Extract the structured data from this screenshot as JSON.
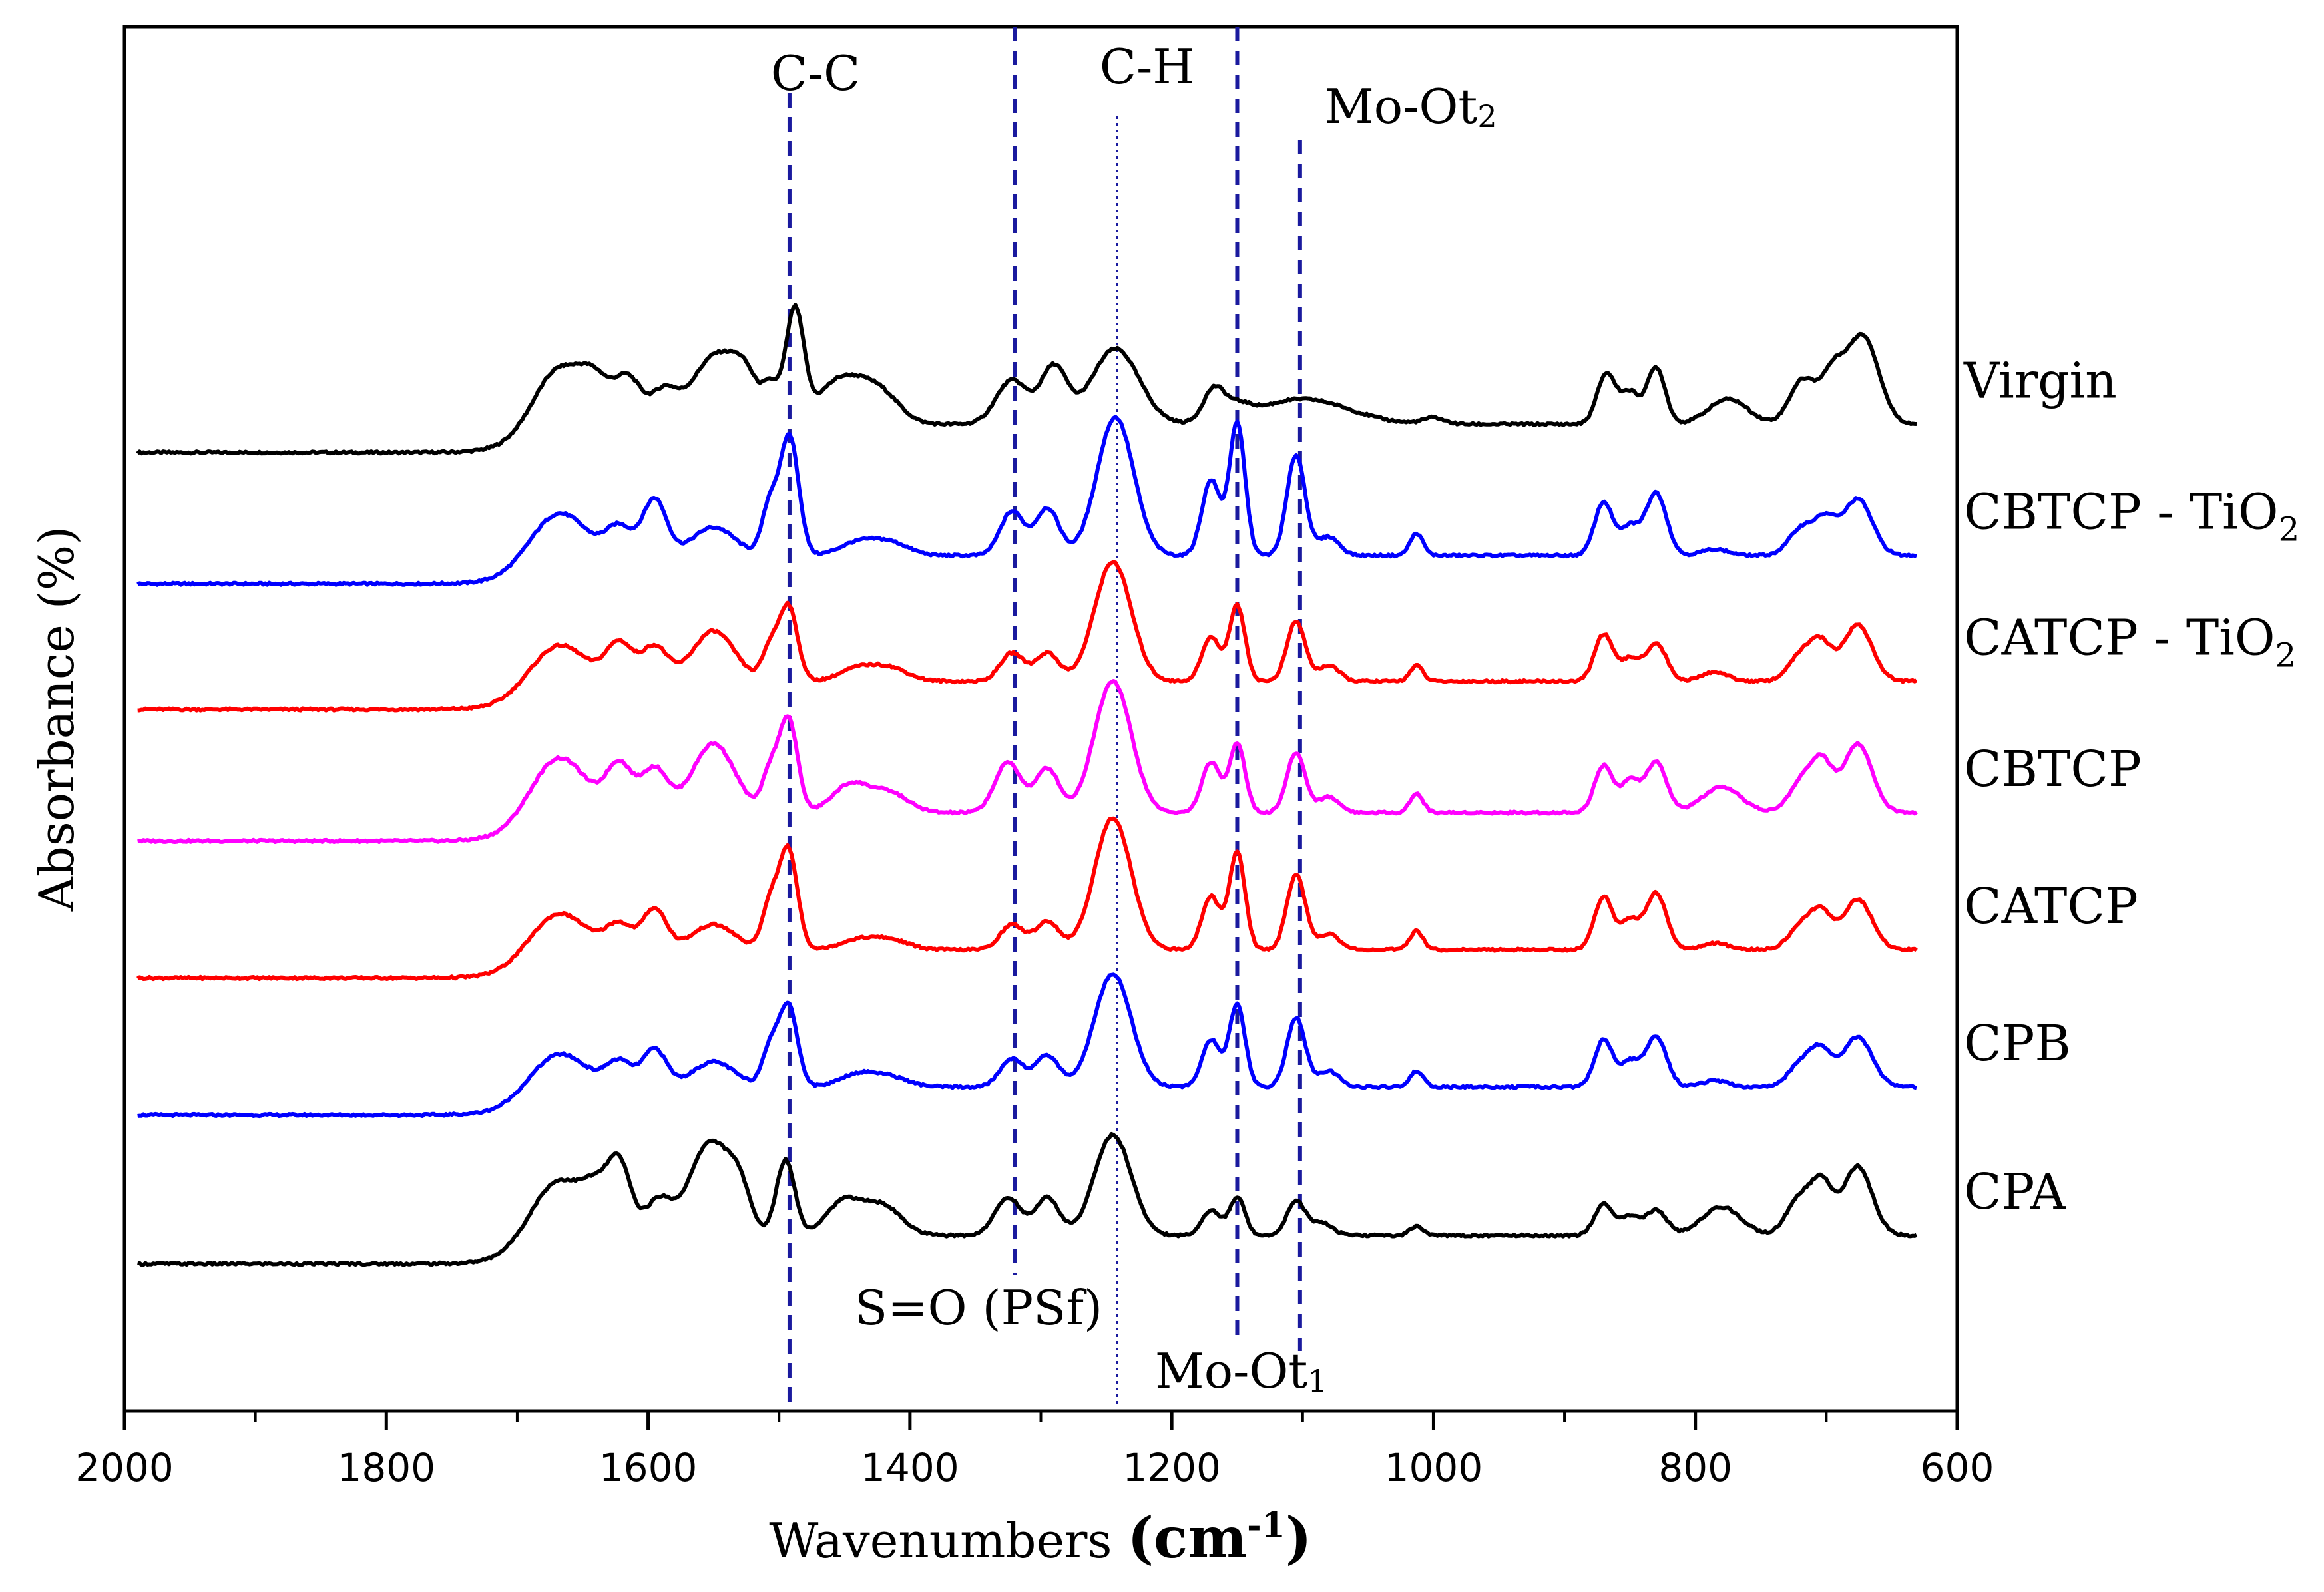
{
  "chart_data": {
    "type": "line",
    "xlabel": "Wavenumbers",
    "xlabel_unit": "(cm",
    "xlabel_unit_sup": "-1",
    "xlabel_close": ")",
    "ylabel": "Absorbance (%)",
    "xlim": [
      2000,
      600
    ],
    "x_reversed": true,
    "grid": false,
    "x_ticks": [
      2000,
      1800,
      1600,
      1400,
      1200,
      1000,
      800,
      600
    ],
    "x_tick_labels": [
      "2000",
      "1800",
      "1600",
      "1400",
      "1200",
      "1000",
      "800",
      "600"
    ],
    "x_range_data": [
      1990,
      630
    ],
    "series": [
      {
        "name": "Virgin",
        "label_main": "Virgin",
        "label_sub": "",
        "color": "#000000",
        "offset": 7.1,
        "peaks": [
          [
            1668,
            0.9,
            18
          ],
          [
            1640,
            0.6,
            12
          ],
          [
            1615,
            0.7,
            10
          ],
          [
            1588,
            0.5,
            10
          ],
          [
            1548,
            1.1,
            18
          ],
          [
            1525,
            0.5,
            10
          ],
          [
            1506,
            0.5,
            6
          ],
          [
            1488,
            1.8,
            7
          ],
          [
            1460,
            0.5,
            14
          ],
          [
            1440,
            0.45,
            14
          ],
          [
            1420,
            0.4,
            14
          ],
          [
            1322,
            0.7,
            12
          ],
          [
            1290,
            0.9,
            10
          ],
          [
            1243,
            1.2,
            18
          ],
          [
            1168,
            0.5,
            8
          ],
          [
            1150,
            0.2,
            10
          ],
          [
            1100,
            0.4,
            35
          ],
          [
            1000,
            0.1,
            8
          ],
          [
            868,
            0.8,
            7
          ],
          [
            850,
            0.5,
            7
          ],
          [
            830,
            0.9,
            7
          ],
          [
            775,
            0.4,
            15
          ],
          [
            718,
            0.7,
            10
          ],
          [
            695,
            0.75,
            9
          ],
          [
            672,
            1.4,
            12
          ]
        ]
      },
      {
        "name": "CBTCP - TiO2",
        "label_main": "CBTCP - TiO",
        "label_sub": "2",
        "color": "#0000ff",
        "offset": 5.95,
        "peaks": [
          [
            1668,
            0.7,
            20
          ],
          [
            1622,
            0.45,
            10
          ],
          [
            1595,
            0.9,
            9
          ],
          [
            1550,
            0.45,
            16
          ],
          [
            1507,
            0.8,
            6
          ],
          [
            1492,
            1.9,
            7
          ],
          [
            1440,
            0.2,
            14
          ],
          [
            1415,
            0.2,
            14
          ],
          [
            1322,
            0.7,
            9
          ],
          [
            1295,
            0.75,
            9
          ],
          [
            1243,
            2.2,
            14
          ],
          [
            1170,
            1.2,
            7
          ],
          [
            1150,
            2.1,
            6
          ],
          [
            1105,
            1.6,
            7
          ],
          [
            1080,
            0.3,
            8
          ],
          [
            1013,
            0.35,
            5
          ],
          [
            870,
            0.85,
            7
          ],
          [
            850,
            0.45,
            7
          ],
          [
            830,
            1.0,
            8
          ],
          [
            785,
            0.1,
            10
          ],
          [
            718,
            0.45,
            10
          ],
          [
            700,
            0.5,
            8
          ],
          [
            676,
            0.9,
            11
          ]
        ]
      },
      {
        "name": "CATCP - TiO2",
        "label_main": "CATCP - TiO",
        "label_sub": "2",
        "color": "#ff0000",
        "offset": 4.85,
        "peaks": [
          [
            1668,
            0.6,
            20
          ],
          [
            1622,
            0.6,
            10
          ],
          [
            1595,
            0.55,
            10
          ],
          [
            1550,
            0.8,
            16
          ],
          [
            1507,
            0.5,
            6
          ],
          [
            1493,
            1.2,
            7
          ],
          [
            1440,
            0.2,
            14
          ],
          [
            1415,
            0.2,
            14
          ],
          [
            1322,
            0.45,
            9
          ],
          [
            1295,
            0.45,
            9
          ],
          [
            1245,
            1.9,
            14
          ],
          [
            1170,
            0.7,
            7
          ],
          [
            1150,
            1.2,
            6
          ],
          [
            1105,
            0.95,
            7
          ],
          [
            1080,
            0.25,
            8
          ],
          [
            1013,
            0.25,
            5
          ],
          [
            870,
            0.75,
            7
          ],
          [
            850,
            0.35,
            7
          ],
          [
            830,
            0.6,
            8
          ],
          [
            785,
            0.15,
            10
          ],
          [
            718,
            0.45,
            10
          ],
          [
            703,
            0.5,
            8
          ],
          [
            676,
            0.9,
            11
          ]
        ]
      },
      {
        "name": "CBTCP",
        "label_main": "CBTCP",
        "label_sub": "",
        "color": "#ff00ff",
        "offset": 3.7,
        "peaks": [
          [
            1668,
            0.9,
            20
          ],
          [
            1622,
            0.75,
            10
          ],
          [
            1595,
            0.7,
            10
          ],
          [
            1550,
            1.1,
            16
          ],
          [
            1507,
            0.6,
            6
          ],
          [
            1493,
            1.5,
            7
          ],
          [
            1445,
            0.45,
            14
          ],
          [
            1415,
            0.3,
            14
          ],
          [
            1325,
            0.8,
            10
          ],
          [
            1295,
            0.7,
            9
          ],
          [
            1245,
            2.1,
            14
          ],
          [
            1170,
            0.8,
            7
          ],
          [
            1150,
            1.1,
            6
          ],
          [
            1105,
            0.95,
            7
          ],
          [
            1080,
            0.25,
            8
          ],
          [
            1013,
            0.3,
            5
          ],
          [
            870,
            0.75,
            7
          ],
          [
            850,
            0.5,
            7
          ],
          [
            830,
            0.8,
            8
          ],
          [
            780,
            0.4,
            15
          ],
          [
            718,
            0.5,
            10
          ],
          [
            703,
            0.7,
            8
          ],
          [
            676,
            1.1,
            11
          ]
        ]
      },
      {
        "name": "CATCP",
        "label_main": "CATCP",
        "label_sub": "",
        "color": "#ff0000",
        "offset": 2.5,
        "peaks": [
          [
            1668,
            0.6,
            20
          ],
          [
            1622,
            0.4,
            10
          ],
          [
            1595,
            0.65,
            9
          ],
          [
            1550,
            0.4,
            16
          ],
          [
            1507,
            0.7,
            6
          ],
          [
            1493,
            1.6,
            7
          ],
          [
            1440,
            0.15,
            14
          ],
          [
            1415,
            0.15,
            14
          ],
          [
            1322,
            0.4,
            9
          ],
          [
            1295,
            0.45,
            9
          ],
          [
            1245,
            2.1,
            14
          ],
          [
            1170,
            0.85,
            7
          ],
          [
            1150,
            1.55,
            6
          ],
          [
            1105,
            1.2,
            7
          ],
          [
            1080,
            0.25,
            8
          ],
          [
            1013,
            0.3,
            5
          ],
          [
            870,
            0.85,
            7
          ],
          [
            850,
            0.45,
            7
          ],
          [
            830,
            0.9,
            8
          ],
          [
            785,
            0.1,
            10
          ],
          [
            718,
            0.4,
            10
          ],
          [
            703,
            0.5,
            8
          ],
          [
            676,
            0.8,
            11
          ]
        ]
      },
      {
        "name": "CPB",
        "label_main": "CPB",
        "label_sub": "",
        "color": "#0000ff",
        "offset": 1.3,
        "peaks": [
          [
            1668,
            0.55,
            20
          ],
          [
            1622,
            0.4,
            10
          ],
          [
            1595,
            0.6,
            9
          ],
          [
            1550,
            0.4,
            16
          ],
          [
            1507,
            0.6,
            6
          ],
          [
            1493,
            1.3,
            7
          ],
          [
            1440,
            0.2,
            14
          ],
          [
            1415,
            0.15,
            14
          ],
          [
            1322,
            0.45,
            9
          ],
          [
            1295,
            0.5,
            9
          ],
          [
            1245,
            1.8,
            14
          ],
          [
            1170,
            0.75,
            7
          ],
          [
            1150,
            1.3,
            6
          ],
          [
            1105,
            1.1,
            7
          ],
          [
            1080,
            0.25,
            8
          ],
          [
            1013,
            0.25,
            5
          ],
          [
            870,
            0.75,
            7
          ],
          [
            850,
            0.4,
            7
          ],
          [
            830,
            0.8,
            8
          ],
          [
            785,
            0.1,
            10
          ],
          [
            718,
            0.4,
            10
          ],
          [
            703,
            0.5,
            8
          ],
          [
            676,
            0.8,
            11
          ]
        ]
      },
      {
        "name": "CPA",
        "label_main": "CPA",
        "label_sub": "",
        "color": "#000000",
        "offset": 0.0,
        "peaks": [
          [
            1668,
            0.9,
            20
          ],
          [
            1640,
            0.5,
            10
          ],
          [
            1622,
            1.1,
            9
          ],
          [
            1592,
            0.55,
            10
          ],
          [
            1552,
            1.5,
            16
          ],
          [
            1530,
            0.5,
            8
          ],
          [
            1495,
            1.2,
            7
          ],
          [
            1450,
            0.55,
            14
          ],
          [
            1420,
            0.45,
            14
          ],
          [
            1325,
            0.6,
            10
          ],
          [
            1295,
            0.6,
            9
          ],
          [
            1245,
            1.6,
            14
          ],
          [
            1170,
            0.4,
            7
          ],
          [
            1150,
            0.6,
            6
          ],
          [
            1105,
            0.55,
            7
          ],
          [
            1085,
            0.2,
            8
          ],
          [
            1013,
            0.15,
            5
          ],
          [
            870,
            0.5,
            7
          ],
          [
            850,
            0.3,
            7
          ],
          [
            830,
            0.4,
            8
          ],
          [
            780,
            0.45,
            15
          ],
          [
            720,
            0.6,
            10
          ],
          [
            703,
            0.75,
            8
          ],
          [
            676,
            1.1,
            11
          ]
        ]
      }
    ],
    "reference_lines": [
      {
        "x": 1492,
        "label": "C-C"
      },
      {
        "x": 1320,
        "label": "S=O (PSf)"
      },
      {
        "x": 1242,
        "label": "C-H",
        "dotted": true
      },
      {
        "x": 1150,
        "label": "Mo-Ot",
        "label_sub": "1"
      },
      {
        "x": 1102,
        "label": "Mo-Ot",
        "label_sub": "2"
      }
    ]
  }
}
